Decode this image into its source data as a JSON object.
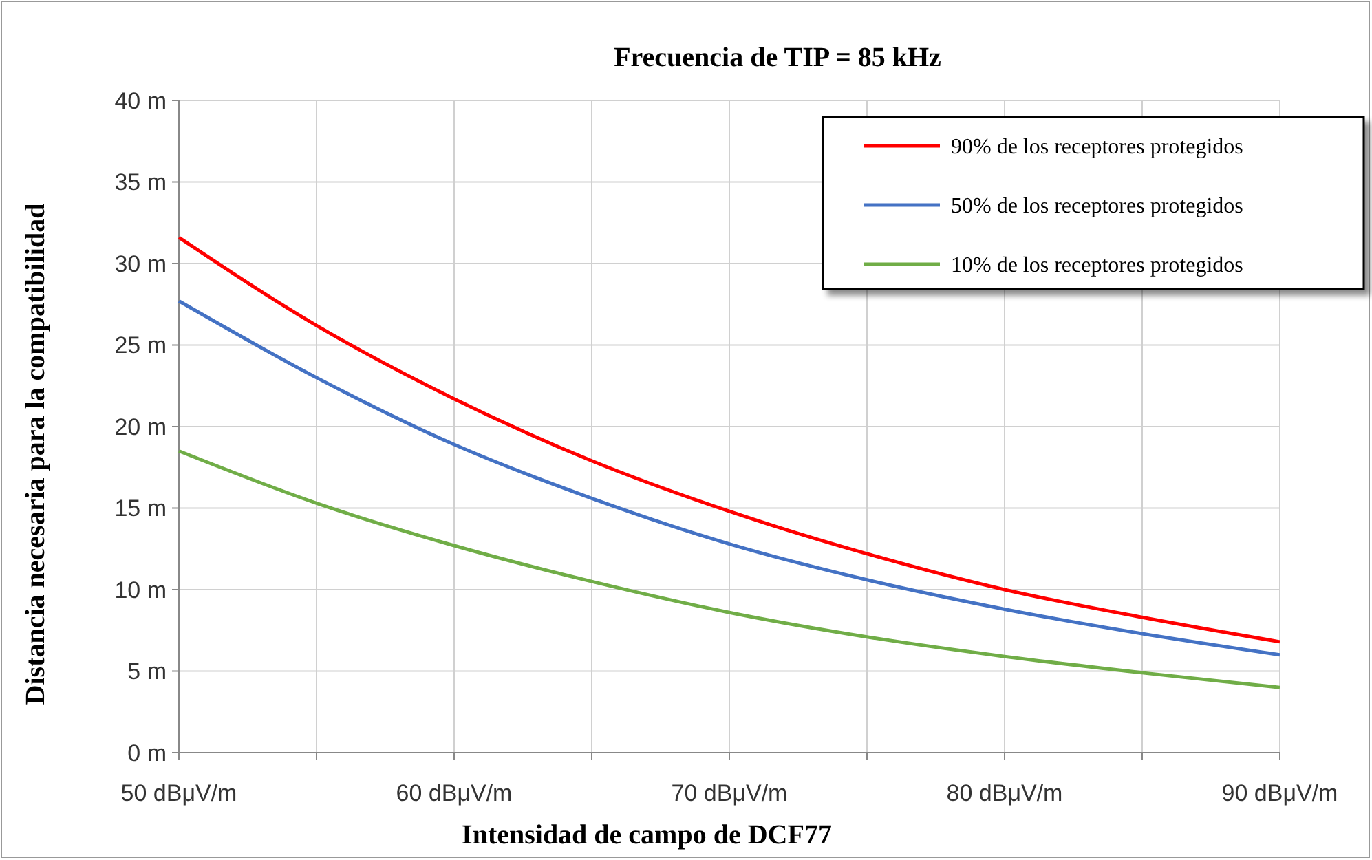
{
  "chart_data": {
    "type": "line",
    "title": "Frecuencia de TIP = 85 kHz",
    "xlabel": "Intensidad de campo de DCF77",
    "ylabel": "Distancia necesaria para la compatibilidad",
    "x": [
      50,
      55,
      60,
      65,
      70,
      75,
      80,
      85,
      90
    ],
    "series": [
      {
        "name": "90% de los receptores protegidos",
        "color": "#ff0000",
        "values": [
          31.6,
          26.2,
          21.7,
          17.9,
          14.8,
          12.2,
          10.0,
          8.3,
          6.8
        ]
      },
      {
        "name": "50% de los receptores protegidos",
        "color": "#4472c4",
        "values": [
          27.7,
          23.0,
          18.9,
          15.6,
          12.8,
          10.6,
          8.8,
          7.3,
          6.0
        ]
      },
      {
        "name": "10% de los receptores protegidos",
        "color": "#70ad47",
        "values": [
          18.5,
          15.3,
          12.7,
          10.5,
          8.6,
          7.1,
          5.9,
          4.9,
          4.0
        ]
      }
    ],
    "xlim": [
      50,
      90
    ],
    "ylim": [
      0,
      40
    ],
    "xticks": [
      {
        "value": 50,
        "label": "50 dBμV/m"
      },
      {
        "value": 55,
        "label": null
      },
      {
        "value": 60,
        "label": "60 dBμV/m"
      },
      {
        "value": 65,
        "label": null
      },
      {
        "value": 70,
        "label": "70 dBμV/m"
      },
      {
        "value": 75,
        "label": null
      },
      {
        "value": 80,
        "label": "80 dBμV/m"
      },
      {
        "value": 85,
        "label": null
      },
      {
        "value": 90,
        "label": "90 dBμV/m"
      }
    ],
    "yticks": [
      {
        "value": 0,
        "label": "0 m"
      },
      {
        "value": 5,
        "label": "5 m"
      },
      {
        "value": 10,
        "label": "10 m"
      },
      {
        "value": 15,
        "label": "15 m"
      },
      {
        "value": 20,
        "label": "20 m"
      },
      {
        "value": 25,
        "label": "25 m"
      },
      {
        "value": 30,
        "label": "30 m"
      },
      {
        "value": 35,
        "label": "35 m"
      },
      {
        "value": 40,
        "label": "40 m"
      }
    ],
    "grid": true,
    "legend": "top right",
    "marker": "none",
    "line_style": "solid"
  }
}
